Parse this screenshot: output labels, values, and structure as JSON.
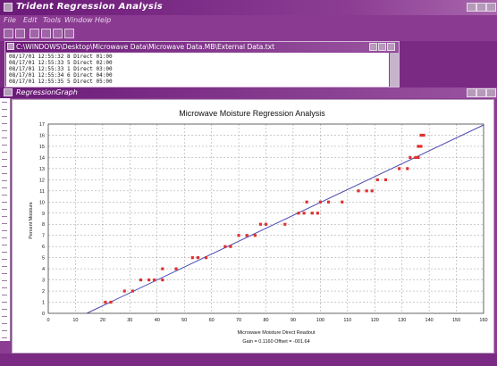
{
  "app": {
    "title": "Trident Regression Analysis"
  },
  "menu": [
    "File",
    "Edit",
    "Tools",
    "Window",
    "Help"
  ],
  "data_window": {
    "title": "C:\\WINDOWS\\Desktop\\Microwave Data\\Microwave Data.MB\\External Data.txt",
    "lines": [
      "08/17/01 12:55:32 8 Direct 01:00",
      "08/17/01 12:55:33 5 Direct 02:00",
      "08/17/01 12:55:33 1 Direct 03:00",
      "08/17/01 12:55:34 6 Direct 04:00",
      "08/17/01 12:55:35 5 Direct 05:00"
    ]
  },
  "graph_window": {
    "title": "RegressionGraph"
  },
  "colors": {
    "accent": "#8a3a91",
    "point": "#e03030",
    "line": "#4a4ab0"
  },
  "chart_data": {
    "type": "scatter",
    "title": "Microwave Moisture Regression Analysis",
    "xlabel": "Microwave Moisture Direct Readout",
    "ylabel": "Percent Moisture",
    "footer": "Gain = 0.1160   Offset = -001.64",
    "xlim": [
      0,
      160
    ],
    "ylim": [
      0,
      17
    ],
    "xticks": [
      0,
      10,
      20,
      30,
      40,
      50,
      60,
      70,
      80,
      90,
      100,
      110,
      120,
      130,
      140,
      150,
      160
    ],
    "yticks": [
      0,
      1,
      2,
      3,
      4,
      5,
      6,
      7,
      8,
      9,
      10,
      11,
      12,
      13,
      14,
      15,
      16,
      17
    ],
    "grid": true,
    "fit": {
      "gain": 0.116,
      "offset": -1.64
    },
    "points": [
      [
        21,
        1
      ],
      [
        23,
        1
      ],
      [
        28,
        2
      ],
      [
        31,
        2
      ],
      [
        34,
        3
      ],
      [
        37,
        3
      ],
      [
        39,
        3
      ],
      [
        42,
        3
      ],
      [
        42,
        4
      ],
      [
        47,
        4
      ],
      [
        53,
        5
      ],
      [
        55,
        5
      ],
      [
        58,
        5
      ],
      [
        65,
        6
      ],
      [
        67,
        6
      ],
      [
        70,
        7
      ],
      [
        73,
        7
      ],
      [
        76,
        7
      ],
      [
        78,
        8
      ],
      [
        80,
        8
      ],
      [
        87,
        8
      ],
      [
        92,
        9
      ],
      [
        94,
        9
      ],
      [
        95,
        10
      ],
      [
        97,
        9
      ],
      [
        99,
        9
      ],
      [
        100,
        10
      ],
      [
        103,
        10
      ],
      [
        108,
        10
      ],
      [
        114,
        11
      ],
      [
        117,
        11
      ],
      [
        119,
        11
      ],
      [
        121,
        12
      ],
      [
        124,
        12
      ],
      [
        129,
        13
      ],
      [
        132,
        13
      ],
      [
        133,
        14
      ],
      [
        135,
        14
      ],
      [
        136,
        15
      ],
      [
        137,
        15
      ],
      [
        137,
        16
      ],
      [
        138,
        16
      ],
      [
        136,
        14
      ]
    ]
  }
}
